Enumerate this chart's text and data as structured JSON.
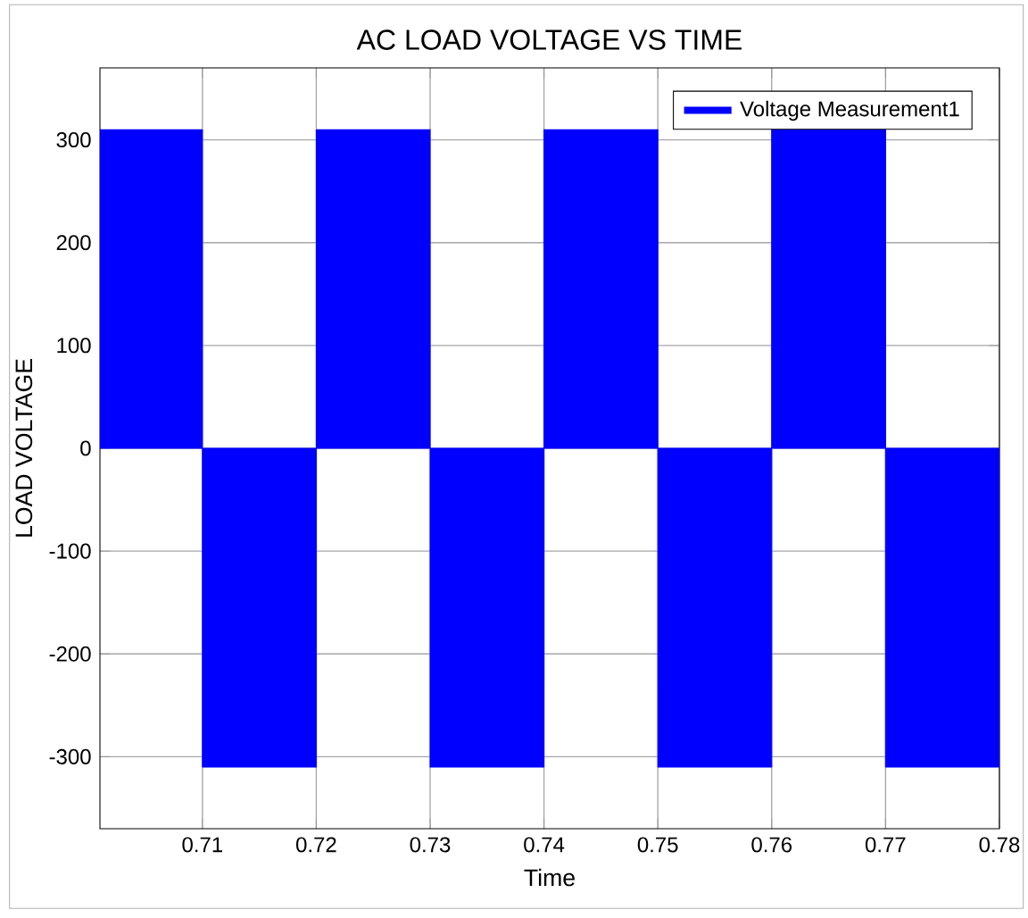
{
  "chart_data": {
    "type": "area",
    "title": "AC LOAD VOLTAGE VS TIME",
    "xlabel": "Time",
    "ylabel": "LOAD VOLTAGE",
    "x": [
      0.701,
      0.71,
      0.71,
      0.72,
      0.72,
      0.73,
      0.73,
      0.74,
      0.74,
      0.75,
      0.75,
      0.76,
      0.76,
      0.77,
      0.77,
      0.78
    ],
    "series": [
      {
        "name": "Voltage Measurement1",
        "color": "#0000ff",
        "values": [
          310,
          310,
          -310,
          -310,
          310,
          310,
          -310,
          -310,
          310,
          310,
          -310,
          -310,
          310,
          310,
          -310,
          -310
        ]
      }
    ],
    "xlim": [
      0.701,
      0.78
    ],
    "xticks": [
      0.71,
      0.72,
      0.73,
      0.74,
      0.75,
      0.76,
      0.77,
      0.78
    ],
    "ylim": [
      -370,
      370
    ],
    "yticks": [
      -300,
      -200,
      -100,
      0,
      100,
      200,
      300
    ],
    "grid": true,
    "legend": "top right"
  }
}
